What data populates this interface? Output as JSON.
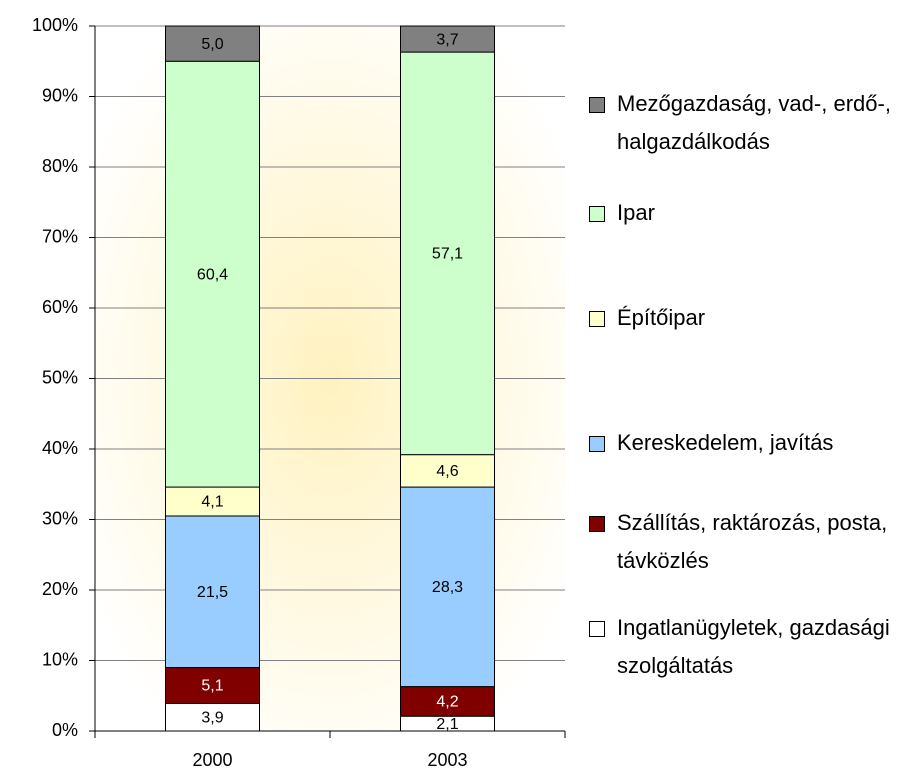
{
  "chart_data": {
    "type": "stacked-bar",
    "categories": [
      "2000",
      "2003"
    ],
    "series": [
      {
        "name": "Ingatlanügyletek, gazdasági szolgáltatás",
        "color": "#ffffff",
        "values": [
          3.9,
          2.1
        ],
        "value_labels": [
          "3,9",
          "2,1"
        ]
      },
      {
        "name": "Szállítás, raktározás, posta, távközlés",
        "color": "#800000",
        "values": [
          5.1,
          4.2
        ],
        "value_labels": [
          "5,1",
          "4,2"
        ]
      },
      {
        "name": "Kereskedelem, javítás",
        "color": "#99ccff",
        "values": [
          21.5,
          28.3
        ],
        "value_labels": [
          "21,5",
          "28,3"
        ]
      },
      {
        "name": "Építőipar",
        "color": "#ffffcc",
        "values": [
          4.1,
          4.6
        ],
        "value_labels": [
          "4,1",
          "4,6"
        ]
      },
      {
        "name": "Ipar",
        "color": "#ccffcc",
        "values": [
          60.4,
          57.1
        ],
        "value_labels": [
          "60,4",
          "57,1"
        ]
      },
      {
        "name": "Mezőgazdaság, vad-, erdő-, halgazdálkodás",
        "color": "#808080",
        "values": [
          5.0,
          3.7
        ],
        "value_labels": [
          "5,0",
          "3,7"
        ]
      }
    ],
    "ylim": [
      0,
      100
    ],
    "yticks": [
      {
        "value": 0,
        "label": "0%"
      },
      {
        "value": 10,
        "label": "10%"
      },
      {
        "value": 20,
        "label": "20%"
      },
      {
        "value": 30,
        "label": "30%"
      },
      {
        "value": 40,
        "label": "40%"
      },
      {
        "value": 50,
        "label": "50%"
      },
      {
        "value": 60,
        "label": "60%"
      },
      {
        "value": 70,
        "label": "70%"
      },
      {
        "value": 80,
        "label": "80%"
      },
      {
        "value": 90,
        "label": "90%"
      },
      {
        "value": 100,
        "label": "100%"
      }
    ],
    "grid": true,
    "legend": "right"
  }
}
